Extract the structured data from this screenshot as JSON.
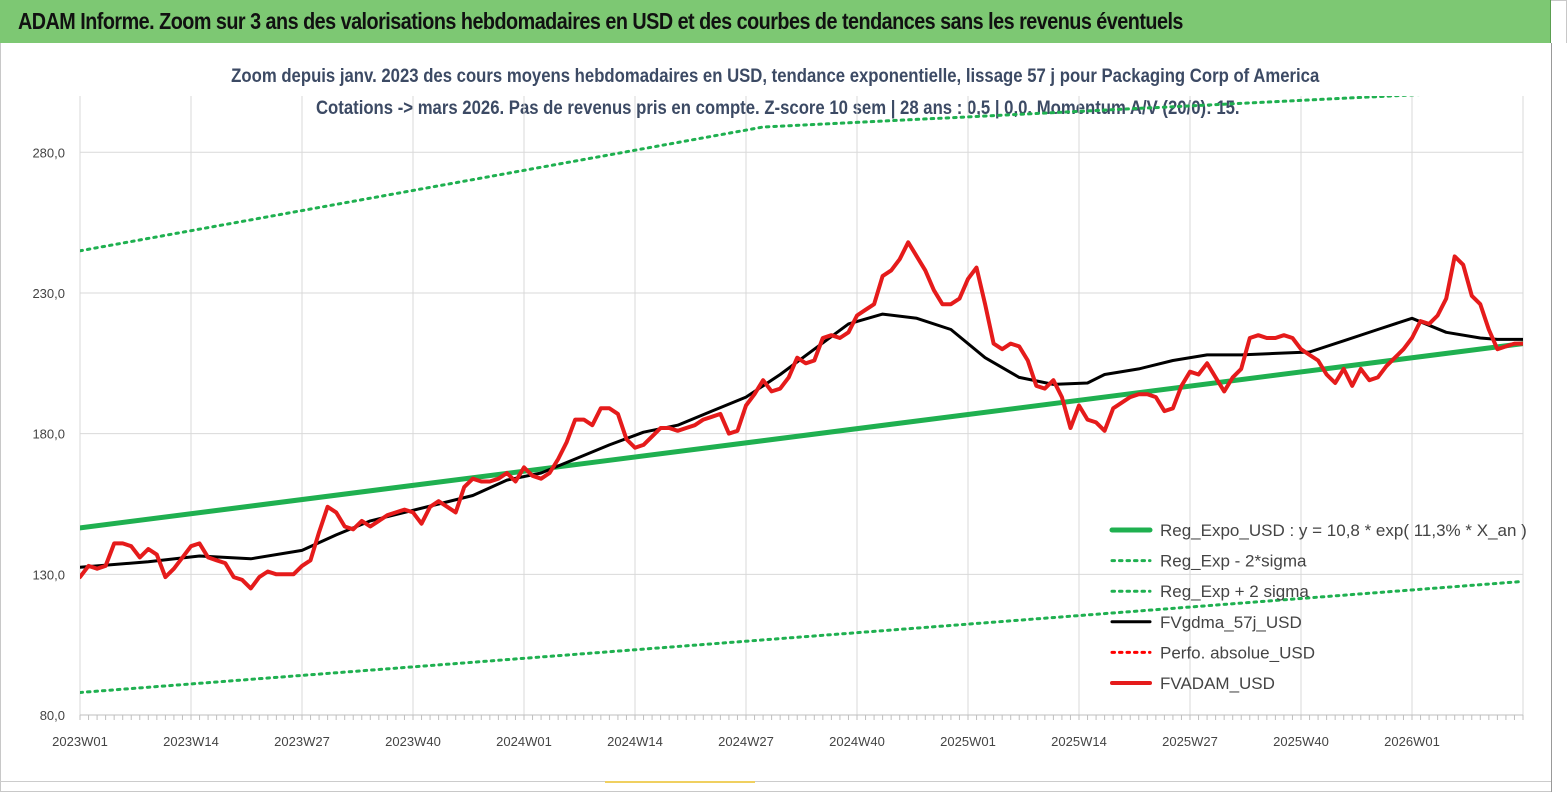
{
  "banner": {
    "title": "ADAM Informe. Zoom sur 3 ans des valorisations hebdomadaires en USD et des courbes de tendances sans les revenus éventuels"
  },
  "chart_data": {
    "type": "line",
    "title": "Zoom depuis janv. 2023 des cours moyens hebdomadaires en USD, tendance exponentielle, lissage 57 j pour Packaging Corp of America",
    "subtitle": "Cotations -> mars 2026. Pas de revenus pris en compte. Z-score 10 sem | 28 ans : 0,5 | 0,0. Momentum A/V (20/0): 15.",
    "xlabel": "",
    "ylabel": "",
    "ylim": [
      80,
      300
    ],
    "y_ticks": [
      "80,0",
      "130,0",
      "180,0",
      "230,0",
      "280,0"
    ],
    "y_tick_values": [
      80,
      130,
      180,
      230,
      280
    ],
    "x_ticks": [
      "2023W01",
      "2023W14",
      "2023W27",
      "2023W40",
      "2024W01",
      "2024W14",
      "2024W27",
      "2024W40",
      "2025W01",
      "2025W14",
      "2025W27",
      "2025W40",
      "2026W01"
    ],
    "n_weeks": 170,
    "grid": true,
    "legend_position": "bottom-right",
    "series": [
      {
        "name": "Reg_Expo_USD : y = 10,8 * exp( 11,3% * X_an )",
        "color": "#1fb050",
        "style": "solid",
        "x": [
          0,
          169
        ],
        "values": [
          146.5,
          212
        ]
      },
      {
        "name": "Reg_Exp - 2*sigma",
        "color": "#1fb050",
        "style": "dotted",
        "x": [
          0,
          169
        ],
        "values": [
          88,
          127.5
        ]
      },
      {
        "name": "Reg_Exp + 2 sigma",
        "color": "#1fb050",
        "style": "dotted",
        "x": [
          0,
          80,
          160,
          169
        ],
        "values": [
          245,
          289,
          301,
          301
        ]
      },
      {
        "name": "FVgdma_57j_USD",
        "color": "#000000",
        "style": "solid",
        "x": [
          0,
          8,
          14,
          20,
          26,
          30,
          34,
          38,
          42,
          46,
          50,
          54,
          58,
          62,
          66,
          70,
          74,
          78,
          82,
          86,
          90,
          94,
          98,
          102,
          106,
          110,
          114,
          118,
          120,
          124,
          128,
          132,
          136,
          140,
          144,
          148,
          152,
          156,
          160,
          164,
          166,
          169
        ],
        "values": [
          132.5,
          134.5,
          136.5,
          135.5,
          138.5,
          144,
          149,
          152,
          155,
          158,
          163.5,
          166,
          171,
          176,
          180.5,
          183,
          188,
          193,
          201,
          210,
          219,
          222.5,
          221,
          217,
          207,
          200,
          197.5,
          198,
          201,
          203,
          206,
          208,
          208,
          208.5,
          209,
          213,
          217,
          221,
          216,
          214,
          213.5,
          213.5
        ]
      },
      {
        "name": "Perfo. absolue_USD",
        "color": "#ff0000",
        "style": "dotted",
        "x": [],
        "values": []
      },
      {
        "name": "FVADAM_USD",
        "color": "#e51b1b",
        "style": "solid",
        "x": [
          0,
          1,
          2,
          3,
          4,
          5,
          6,
          7,
          8,
          9,
          10,
          11,
          12,
          13,
          14,
          15,
          16,
          17,
          18,
          19,
          20,
          21,
          22,
          23,
          24,
          25,
          26,
          27,
          28,
          29,
          30,
          31,
          32,
          33,
          34,
          35,
          36,
          37,
          38,
          39,
          40,
          41,
          42,
          43,
          44,
          45,
          46,
          47,
          48,
          49,
          50,
          51,
          52,
          53,
          54,
          55,
          56,
          57,
          58,
          59,
          60,
          61,
          62,
          63,
          64,
          65,
          66,
          67,
          68,
          69,
          70,
          71,
          72,
          73,
          74,
          75,
          76,
          77,
          78,
          79,
          80,
          81,
          82,
          83,
          84,
          85,
          86,
          87,
          88,
          89,
          90,
          91,
          92,
          93,
          94,
          95,
          96,
          97,
          98,
          99,
          100,
          101,
          102,
          103,
          104,
          105,
          106,
          107,
          108,
          109,
          110,
          111,
          112,
          113,
          114,
          115,
          116,
          117,
          118,
          119,
          120,
          121,
          122,
          123,
          124,
          125,
          126,
          127,
          128,
          129,
          130,
          131,
          132,
          133,
          134,
          135,
          136,
          137,
          138,
          139,
          140,
          141,
          142,
          143,
          144,
          145,
          146,
          147,
          148,
          149,
          150,
          151,
          152,
          153,
          154,
          155,
          156,
          157,
          158,
          159,
          160,
          161,
          162,
          163,
          164,
          165,
          166,
          167,
          168,
          169
        ],
        "values": [
          129,
          133,
          132,
          133,
          141,
          141,
          140,
          136,
          139,
          137,
          129,
          132,
          136,
          140,
          141,
          136,
          135,
          134,
          129,
          128,
          125,
          129,
          131,
          130,
          130,
          130,
          133,
          135,
          145,
          154,
          152,
          147,
          146,
          149,
          147,
          149,
          151,
          152,
          153,
          152,
          148,
          154,
          156,
          154,
          152,
          161,
          164,
          163,
          163,
          164,
          166,
          163,
          168,
          165,
          164,
          166,
          171,
          177,
          185,
          185,
          183,
          189,
          189,
          187,
          178,
          175,
          176,
          179,
          182,
          182,
          181,
          182,
          183,
          185,
          186,
          187,
          180,
          181,
          190,
          194,
          199,
          195,
          196,
          200,
          207,
          205,
          206,
          214,
          215,
          214,
          216,
          222,
          224,
          226,
          236,
          238,
          242,
          248,
          243,
          238,
          231,
          226,
          226,
          228,
          235,
          239,
          226,
          212,
          210,
          212,
          211,
          206,
          197,
          196,
          199,
          193,
          182,
          190,
          185,
          184,
          181,
          189,
          191,
          193,
          194,
          194,
          193,
          188,
          189,
          197,
          202,
          201,
          205,
          200,
          195,
          200,
          203,
          214,
          215,
          214,
          214,
          215,
          214,
          210,
          208,
          206,
          201,
          198,
          203,
          197,
          203,
          199,
          200,
          204,
          207,
          210,
          214,
          220,
          219,
          222,
          228,
          243,
          240,
          229,
          226,
          217,
          210,
          211,
          212,
          212
        ]
      }
    ]
  }
}
